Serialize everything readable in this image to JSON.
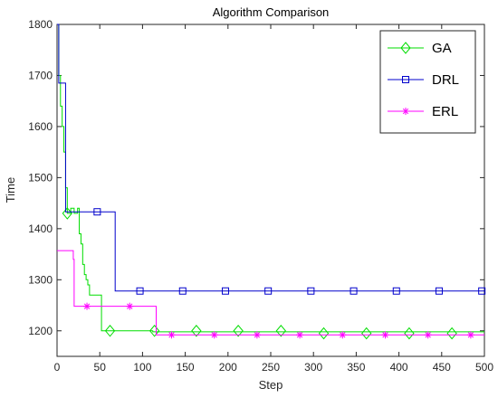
{
  "chart_data": {
    "type": "line",
    "title": "Algorithm Comparison",
    "xlabel": "Step",
    "ylabel": "Time",
    "xlim": [
      0,
      500
    ],
    "ylim": [
      1150,
      1800
    ],
    "xticks": [
      0,
      50,
      100,
      150,
      200,
      250,
      300,
      350,
      400,
      450,
      500
    ],
    "yticks": [
      1200,
      1300,
      1400,
      1500,
      1600,
      1700,
      1800
    ],
    "grid": false,
    "legend_position": "top-right",
    "series": [
      {
        "name": "GA",
        "color": "#00dd00",
        "marker": "diamond",
        "step_points": [
          [
            0,
            1800
          ],
          [
            2,
            1700
          ],
          [
            4,
            1640
          ],
          [
            6,
            1600
          ],
          [
            8,
            1550
          ],
          [
            10,
            1480
          ],
          [
            12,
            1430
          ],
          [
            16,
            1440
          ],
          [
            20,
            1430
          ],
          [
            24,
            1440
          ],
          [
            26,
            1390
          ],
          [
            28,
            1370
          ],
          [
            30,
            1330
          ],
          [
            32,
            1310
          ],
          [
            34,
            1300
          ],
          [
            36,
            1290
          ],
          [
            38,
            1270
          ],
          [
            52,
            1200
          ],
          [
            112,
            1198
          ],
          [
            500,
            1198
          ]
        ],
        "marker_x": [
          12,
          62,
          114,
          163,
          212,
          262,
          312,
          362,
          412,
          462
        ],
        "marker_y": [
          1430,
          1200,
          1200,
          1200,
          1200,
          1200,
          1195,
          1195,
          1195,
          1195
        ]
      },
      {
        "name": "DRL",
        "color": "#0000cc",
        "marker": "square",
        "step_points": [
          [
            0,
            1800
          ],
          [
            2,
            1685
          ],
          [
            8,
            1685
          ],
          [
            10,
            1433
          ],
          [
            68,
            1433
          ],
          [
            68,
            1278
          ],
          [
            500,
            1278
          ]
        ],
        "marker_x": [
          47,
          97,
          147,
          197,
          247,
          297,
          347,
          397,
          447,
          497
        ],
        "marker_y": [
          1433,
          1278,
          1278,
          1278,
          1278,
          1278,
          1278,
          1278,
          1278,
          1278
        ]
      },
      {
        "name": "ERL",
        "color": "#ff00ff",
        "marker": "asterisk",
        "step_points": [
          [
            0,
            1357
          ],
          [
            17,
            1357
          ],
          [
            19,
            1340
          ],
          [
            20,
            1248
          ],
          [
            116,
            1248
          ],
          [
            116,
            1192
          ],
          [
            500,
            1192
          ]
        ],
        "marker_x": [
          35,
          85,
          134,
          184,
          234,
          284,
          334,
          384,
          434,
          484
        ],
        "marker_y": [
          1248,
          1248,
          1192,
          1192,
          1192,
          1192,
          1192,
          1192,
          1192,
          1192
        ]
      }
    ]
  }
}
